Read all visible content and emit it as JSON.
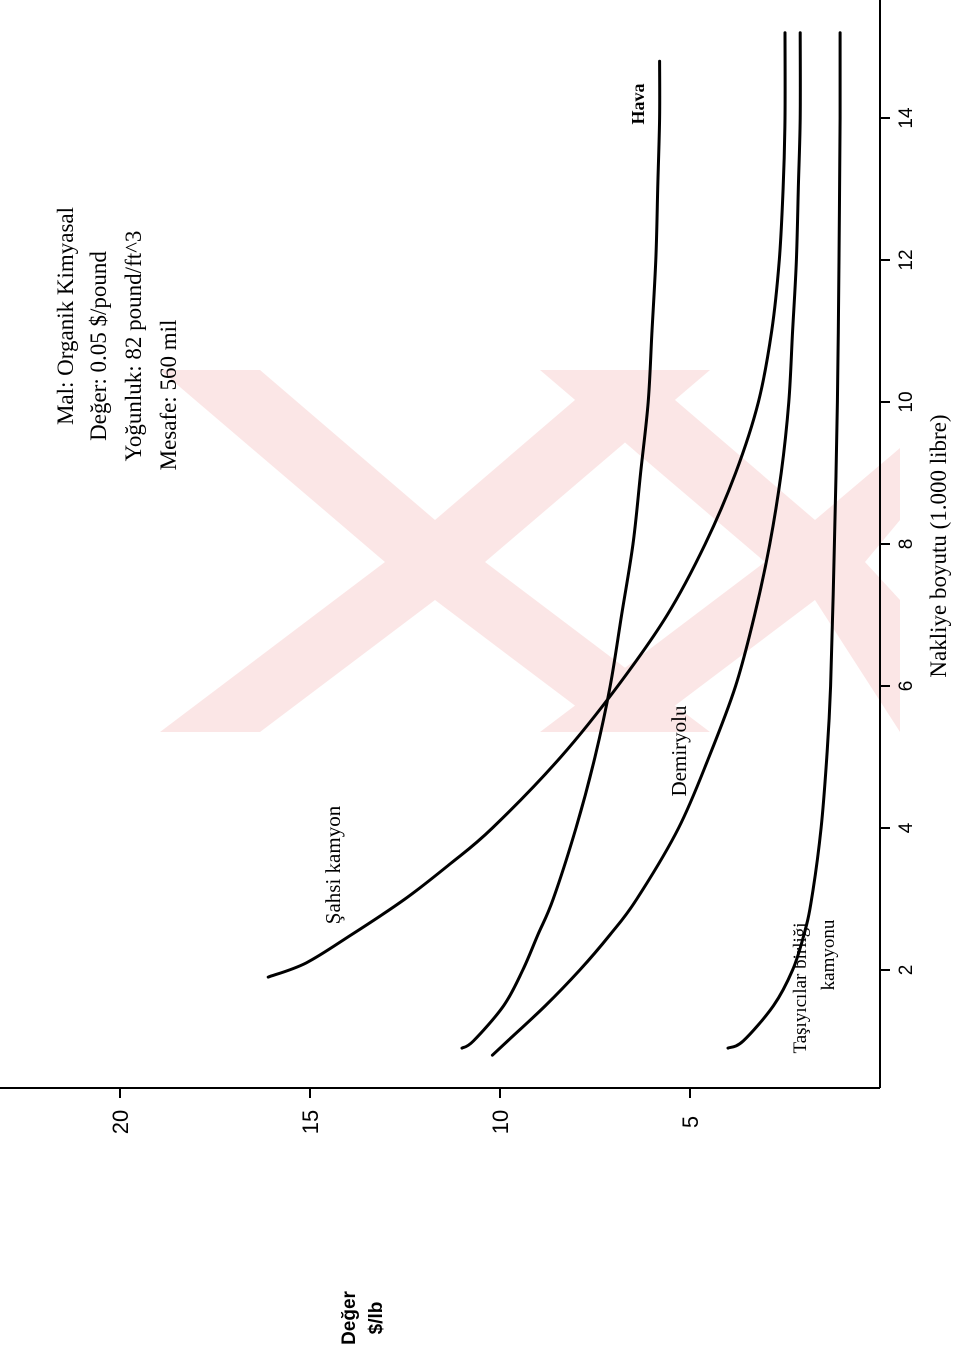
{
  "chart_data": {
    "type": "line",
    "xlabel": "Nakliye boyutu (1.000 libre)",
    "ylabel": [
      "Değer",
      "$/lb"
    ],
    "xlim": [
      0,
      16
    ],
    "ylim": [
      0,
      22
    ],
    "x_ticks": [
      2,
      4,
      6,
      8,
      10,
      12,
      14
    ],
    "y_ticks": [
      5,
      10,
      15,
      20
    ],
    "info": [
      "Mal:  Organik Kimyasal",
      "Değer:  0.05 $/pound",
      "Yoğunluk:  82 pound/ft^3",
      "Mesafe:  560 mil"
    ],
    "series": [
      {
        "name": "Şahsi kamyon",
        "x": [
          1.9,
          2.1,
          2.5,
          3,
          3.5,
          4,
          5,
          6,
          7,
          8,
          9,
          10,
          11,
          12,
          13,
          14,
          15.2
        ],
        "y": [
          16.1,
          15.1,
          13.9,
          12.5,
          11.3,
          10.2,
          8.4,
          6.9,
          5.6,
          4.6,
          3.8,
          3.2,
          2.85,
          2.65,
          2.55,
          2.5,
          2.5
        ]
      },
      {
        "name": "Hava",
        "x": [
          0.9,
          1,
          1.5,
          2,
          2.5,
          3,
          4,
          5,
          6,
          7,
          8,
          9,
          10,
          11,
          12,
          13,
          14,
          14.8
        ],
        "y": [
          11.0,
          10.7,
          9.9,
          9.4,
          9.0,
          8.6,
          8.0,
          7.5,
          7.1,
          6.8,
          6.5,
          6.3,
          6.1,
          6.0,
          5.9,
          5.85,
          5.8,
          5.8
        ]
      },
      {
        "name": "Demiryolu",
        "x": [
          0.8,
          1,
          1.5,
          2,
          2.5,
          3,
          4,
          5,
          6,
          7,
          8,
          9,
          10,
          11,
          12,
          13,
          14,
          15.2
        ],
        "y": [
          10.2,
          9.8,
          8.8,
          7.9,
          7.1,
          6.4,
          5.3,
          4.5,
          3.8,
          3.3,
          2.9,
          2.6,
          2.4,
          2.3,
          2.2,
          2.15,
          2.1,
          2.1
        ]
      },
      {
        "name": "Taşıyıcılar birliği kamyonu",
        "x": [
          0.9,
          1,
          1.5,
          2,
          2.5,
          3,
          4,
          5,
          6,
          8,
          10,
          12,
          14,
          15.2
        ],
        "y": [
          4.0,
          3.6,
          2.8,
          2.3,
          2.0,
          1.8,
          1.55,
          1.4,
          1.3,
          1.2,
          1.12,
          1.08,
          1.05,
          1.05
        ]
      }
    ],
    "curve_labels": [
      "Şahsi kamyon",
      "Hava",
      "Demiryolu",
      "Taşıyıcılar birliği",
      "kamyonu"
    ]
  }
}
